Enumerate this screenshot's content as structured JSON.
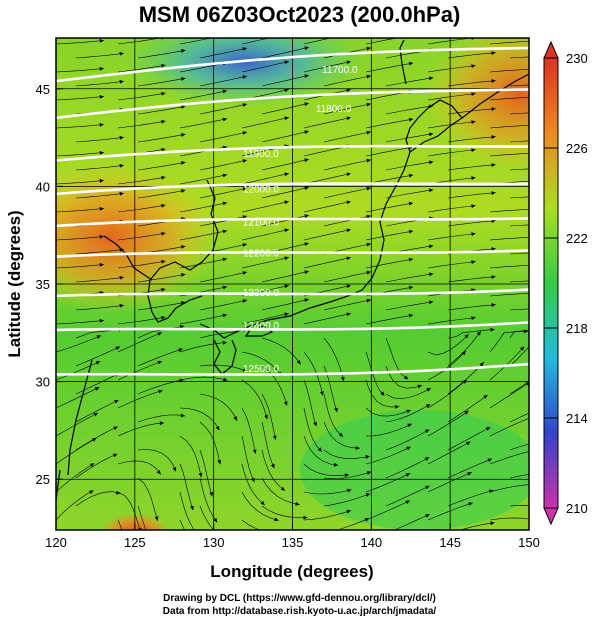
{
  "title": "MSM 06Z03Oct2023 (200.0hPa)",
  "map": {
    "xlabel": "Longitude (degrees)",
    "ylabel": "Latitude  (degrees)",
    "xlim": [
      120,
      150
    ],
    "ylim": [
      22.4,
      47.6
    ],
    "xticks": [
      120,
      125,
      130,
      135,
      140,
      145,
      150
    ],
    "yticks": [
      25,
      30,
      35,
      40,
      45
    ],
    "gridline_lon": [
      125,
      130,
      135,
      140,
      145
    ],
    "gridline_lat": [
      25,
      30,
      35,
      40,
      45
    ]
  },
  "colorbar": {
    "min": 210,
    "max": 230,
    "ticks": [
      210,
      214,
      218,
      222,
      226,
      230
    ],
    "colors": [
      "#cc33aa",
      "#3344cc",
      "#22bbdd",
      "#33cc44",
      "#aadd22",
      "#ee8822",
      "#dd3322"
    ]
  },
  "contours": [
    {
      "label": "11700.0",
      "lon": 138.0,
      "lat": 45.9
    },
    {
      "label": "11800.0",
      "lon": 137.6,
      "lat": 43.9
    },
    {
      "label": "11900.0",
      "lon": 133.0,
      "lat": 41.6
    },
    {
      "label": "12000.0",
      "lon": 133.0,
      "lat": 39.8
    },
    {
      "label": "12100.0",
      "lon": 133.0,
      "lat": 38.1
    },
    {
      "label": "12200.0",
      "lon": 133.0,
      "lat": 36.5
    },
    {
      "label": "12300.0",
      "lon": 133.0,
      "lat": 34.5
    },
    {
      "label": "12400.0",
      "lon": 133.0,
      "lat": 32.8
    },
    {
      "label": "12500.0",
      "lon": 133.0,
      "lat": 30.6
    }
  ],
  "footer": {
    "line1": "Drawing by DCL (https://www.gfd-dennou.org/library/dcl/)",
    "line2": "Data from http://database.rish.kyoto-u.ac.jp/arch/jmadata/"
  }
}
